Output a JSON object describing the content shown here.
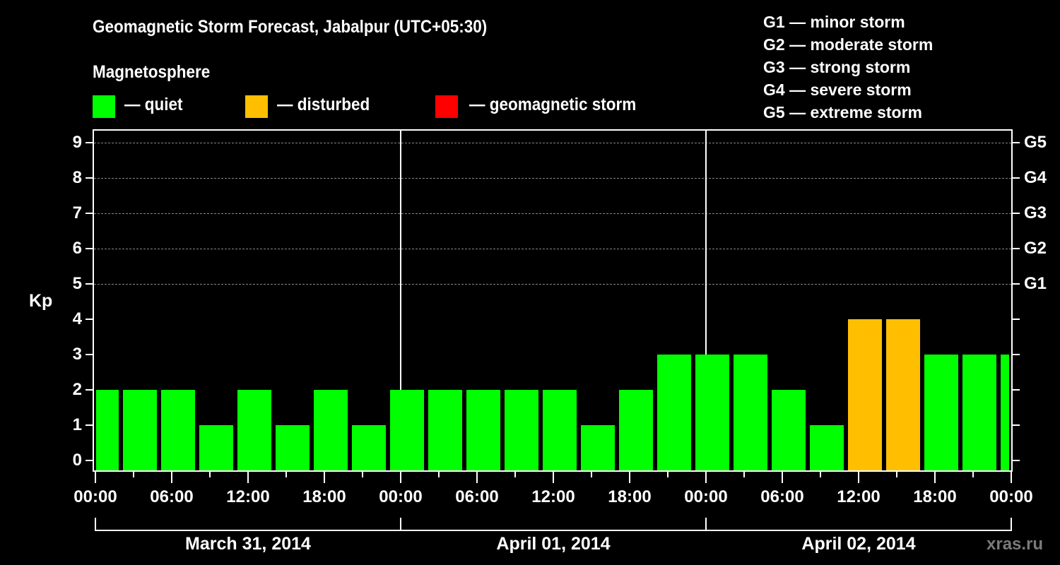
{
  "title": "Geomagnetic Storm Forecast, Jabalpur (UTC+05:30)",
  "subtitle": "Magnetosphere",
  "legend": [
    {
      "label": "— quiet",
      "color": "#00ff00"
    },
    {
      "label": "— disturbed",
      "color": "#ffbf00"
    },
    {
      "label": "— geomagnetic storm",
      "color": "#ff0000"
    }
  ],
  "g_scale": [
    "G1 — minor storm",
    "G2 — moderate storm",
    "G3 — strong storm",
    "G4 — severe storm",
    "G5 — extreme storm"
  ],
  "watermark": "xras.ru",
  "chart_data": {
    "type": "bar",
    "title": "Geomagnetic Storm Forecast, Jabalpur (UTC+05:30)",
    "xlabel": "",
    "ylabel": "Kp",
    "ylim": [
      0,
      9
    ],
    "yticks": [
      0,
      1,
      2,
      3,
      4,
      5,
      6,
      7,
      8,
      9
    ],
    "right_axis_labels": [
      {
        "kp": 5,
        "label": "G1"
      },
      {
        "kp": 6,
        "label": "G2"
      },
      {
        "kp": 7,
        "label": "G3"
      },
      {
        "kp": 8,
        "label": "G4"
      },
      {
        "kp": 9,
        "label": "G5"
      }
    ],
    "grid": "dashed horizontal at Kp 5-9",
    "x_tick_labels": [
      "00:00",
      "06:00",
      "12:00",
      "18:00",
      "00:00",
      "06:00",
      "12:00",
      "18:00",
      "00:00",
      "06:00",
      "12:00",
      "18:00",
      "00:00"
    ],
    "dates": [
      "March 31, 2014",
      "April 01, 2014",
      "April 02, 2014"
    ],
    "interval_hours": 3,
    "categories": [
      "Mar31 ~00:00",
      "Mar31 02:30",
      "Mar31 05:30",
      "Mar31 08:30",
      "Mar31 11:30",
      "Mar31 14:30",
      "Mar31 17:30",
      "Mar31 20:30",
      "Mar31 23:30",
      "Apr01 02:30",
      "Apr01 05:30",
      "Apr01 08:30",
      "Apr01 11:30",
      "Apr01 14:30",
      "Apr01 17:30",
      "Apr01 20:30",
      "Apr01 23:30",
      "Apr02 02:30",
      "Apr02 05:30",
      "Apr02 08:30",
      "Apr02 11:30",
      "Apr02 14:30",
      "Apr02 17:30",
      "Apr02 20:30",
      "Apr02 23:30"
    ],
    "values": [
      2,
      2,
      2,
      1,
      2,
      1,
      2,
      1,
      2,
      2,
      2,
      2,
      2,
      1,
      2,
      3,
      3,
      3,
      2,
      1,
      4,
      4,
      3,
      3,
      3
    ],
    "status": [
      "quiet",
      "quiet",
      "quiet",
      "quiet",
      "quiet",
      "quiet",
      "quiet",
      "quiet",
      "quiet",
      "quiet",
      "quiet",
      "quiet",
      "quiet",
      "quiet",
      "quiet",
      "quiet",
      "quiet",
      "quiet",
      "quiet",
      "quiet",
      "disturbed",
      "disturbed",
      "quiet",
      "quiet",
      "quiet"
    ],
    "colors": {
      "quiet": "#00ff00",
      "disturbed": "#ffbf00",
      "storm": "#ff0000"
    }
  }
}
